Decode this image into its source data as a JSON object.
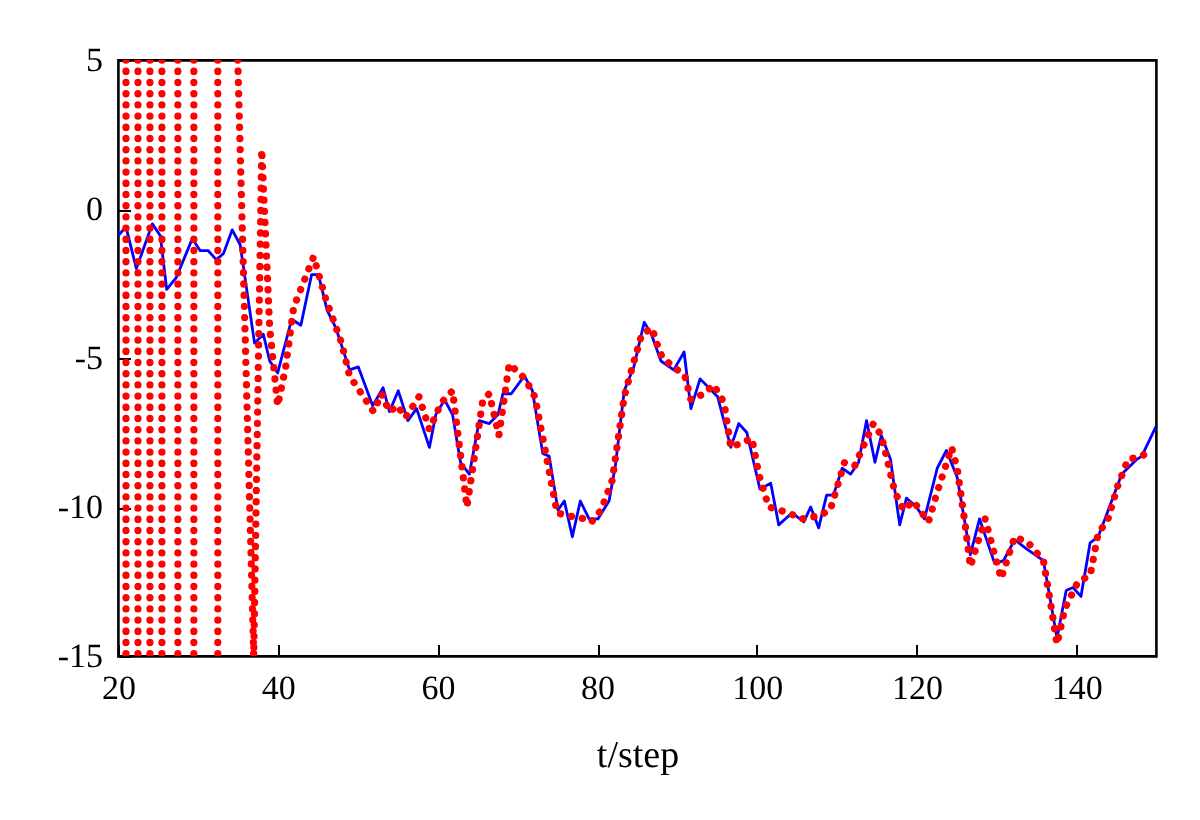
{
  "chart_data": {
    "type": "line",
    "xlabel": "t/step",
    "xlim": [
      20,
      150
    ],
    "xticks": [
      20,
      40,
      60,
      80,
      100,
      120,
      140
    ],
    "ylim": [
      -15,
      5
    ],
    "yticks": [
      -15,
      -10,
      -5,
      0,
      5
    ],
    "series": [
      {
        "color": "#0000ff",
        "line_style": "solid",
        "x": [
          20,
          21,
          22.3,
          24.3,
          25.3,
          26.1,
          27.3,
          29.3,
          30.3,
          31.3,
          32.3,
          33.2,
          34.3,
          35.3,
          37.1,
          38.2,
          39,
          40,
          41.75,
          42.9,
          44.25,
          45.1,
          46.2,
          47.3,
          49,
          50.1,
          51.9,
          53.2,
          54,
          55.1,
          56.3,
          57.4,
          59,
          59.8,
          60.9,
          61.9,
          62.9,
          64,
          65.25,
          66.5,
          67.6,
          68.2,
          69.25,
          70.9,
          71.9,
          73.2,
          74,
          75.1,
          75.9,
          76.9,
          77.9,
          79,
          80.1,
          81.5,
          82.3,
          83.4,
          84.6,
          85.9,
          86.8,
          88,
          89.6,
          90.9,
          91.75,
          92.9,
          95.1,
          96.75,
          97.75,
          98.75,
          100.4,
          101.75,
          102.75,
          104.4,
          105.9,
          106.75,
          107.75,
          108.75,
          109.6,
          110.7,
          111.75,
          112.75,
          113.75,
          114.8,
          115.6,
          116.75,
          117.9,
          118.75,
          120,
          121,
          122.6,
          123.75,
          125.1,
          126.75,
          127.9,
          129.8,
          130.9,
          132.3,
          133.75,
          135.9,
          137.6,
          138.75,
          139.6,
          140.6,
          141.75,
          142.75,
          143.75,
          145.7,
          147.6,
          148.2,
          150
        ],
        "values": [
          -0.9,
          -0.6,
          -2.0,
          -0.5,
          -0.9,
          -2.7,
          -2.3,
          -1.0,
          -1.4,
          -1.4,
          -1.7,
          -1.5,
          -0.7,
          -1.2,
          -4.5,
          -4.2,
          -5.1,
          -5.5,
          -3.7,
          -3.9,
          -2.2,
          -2.2,
          -3.4,
          -4.0,
          -5.4,
          -5.3,
          -6.6,
          -6.0,
          -6.8,
          -6.1,
          -7.1,
          -6.7,
          -8.0,
          -6.9,
          -6.4,
          -6.9,
          -8.5,
          -8.9,
          -7.1,
          -7.2,
          -6.9,
          -6.2,
          -6.2,
          -5.6,
          -6.1,
          -8.2,
          -8.3,
          -10.1,
          -9.8,
          -11.0,
          -9.8,
          -10.4,
          -10.4,
          -9.8,
          -8.6,
          -6.1,
          -5.3,
          -3.8,
          -4.2,
          -5.1,
          -5.4,
          -4.8,
          -6.7,
          -5.7,
          -6.3,
          -8.0,
          -7.2,
          -7.5,
          -9.4,
          -9.2,
          -10.6,
          -10.2,
          -10.5,
          -10.0,
          -10.7,
          -9.6,
          -9.6,
          -8.7,
          -8.9,
          -8.5,
          -7.1,
          -8.5,
          -7.6,
          -8.4,
          -10.6,
          -9.7,
          -10.0,
          -10.4,
          -8.7,
          -8.1,
          -9.0,
          -11.6,
          -10.4,
          -11.9,
          -11.8,
          -11.1,
          -11.4,
          -11.8,
          -14.4,
          -12.8,
          -12.7,
          -13.0,
          -11.2,
          -11.0,
          -10.3,
          -8.9,
          -8.4,
          -8.3,
          -7.3
        ]
      },
      {
        "color": "#ff0000",
        "line_style": "dotted",
        "x": [
          21,
          21
        ],
        "values": [
          5,
          -15
        ]
      },
      {
        "color": "#ff0000",
        "line_style": "dotted",
        "x": [
          22.5,
          22.5
        ],
        "values": [
          5,
          -15
        ]
      },
      {
        "color": "#ff0000",
        "line_style": "dotted",
        "x": [
          24,
          24
        ],
        "values": [
          5,
          -15
        ]
      },
      {
        "color": "#ff0000",
        "line_style": "dotted",
        "x": [
          25.5,
          25.5
        ],
        "values": [
          5,
          -15
        ]
      },
      {
        "color": "#ff0000",
        "line_style": "dotted",
        "x": [
          27.5,
          27.5
        ],
        "values": [
          5,
          -15
        ]
      },
      {
        "color": "#ff0000",
        "line_style": "dotted",
        "x": [
          29.5,
          29.5
        ],
        "values": [
          5,
          -15
        ]
      },
      {
        "color": "#ff0000",
        "line_style": "dotted",
        "x": [
          32.5,
          32.5
        ],
        "values": [
          5,
          -15
        ]
      },
      {
        "color": "#ff0000",
        "line_style": "dotted",
        "x": [
          35,
          37,
          38,
          39,
          40,
          41,
          42,
          44.5,
          46,
          48,
          49,
          50,
          52,
          53,
          54,
          55,
          56,
          57.7,
          59,
          60.5,
          61.9,
          63.7,
          65.7,
          66.5,
          67.7,
          69,
          71,
          72.2,
          73.5,
          75,
          76.5,
          78.5,
          79.3,
          80.5,
          81.9,
          83.4,
          84,
          85.6,
          86.9,
          87.6,
          88.2,
          91,
          91.75,
          93.4,
          94.6,
          95.9,
          96.75,
          99.4,
          100.25,
          101.5,
          104,
          105.6,
          107.75,
          109.2,
          111,
          112.3,
          114.6,
          115.6,
          117.3,
          118.4,
          119.6,
          121.5,
          122.6,
          124.4,
          125.1,
          126.1,
          126.75,
          128.6,
          130.6,
          132.3,
          134,
          135.9,
          136.9,
          137.6,
          138.6,
          140.25,
          141.75,
          142.75,
          144,
          145.2,
          146.5,
          148.2,
          149.25
        ],
        "values": [
          5,
          -15,
          2,
          -4.0,
          -6.6,
          -5.3,
          -3.3,
          -1.6,
          -3.0,
          -4.5,
          -5.6,
          -6.0,
          -6.8,
          -6.2,
          -6.8,
          -6.6,
          -7.0,
          -6.3,
          -7.4,
          -6.5,
          -6.1,
          -10.0,
          -6.4,
          -6.2,
          -7.6,
          -5.2,
          -5.7,
          -6.3,
          -8.1,
          -10.2,
          -10.3,
          -10.4,
          -10.5,
          -10.1,
          -9.1,
          -6.3,
          -5.7,
          -4.2,
          -4.0,
          -4.6,
          -5.0,
          -5.6,
          -6.4,
          -6.2,
          -5.9,
          -6.5,
          -8.0,
          -7.7,
          -8.9,
          -10.0,
          -10.2,
          -10.4,
          -10.3,
          -10.1,
          -8.5,
          -8.6,
          -7.2,
          -7.6,
          -9.5,
          -10.1,
          -9.8,
          -10.5,
          -9.5,
          -8.0,
          -8.7,
          -10.6,
          -12.0,
          -10.4,
          -12.4,
          -11.0,
          -11.2,
          -11.8,
          -13.4,
          -14.6,
          -13.4,
          -12.5,
          -12.3,
          -10.9,
          -10.4,
          -9.3,
          -8.4,
          -8.3,
          -8.1
        ]
      }
    ]
  }
}
